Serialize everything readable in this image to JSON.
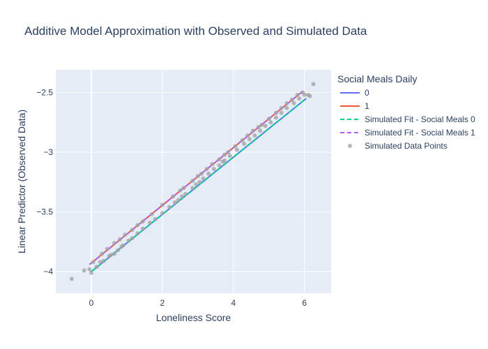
{
  "chart_data": {
    "type": "scatter",
    "title": "Additive Model Approximation with Observed and Simulated Data",
    "xlabel": "Loneliness Score",
    "ylabel": "Linear Predictor (Observed Data)",
    "xlim": [
      -1.0,
      6.75
    ],
    "ylim": [
      -4.18,
      -2.31
    ],
    "x_ticks": [
      0,
      2,
      4,
      6
    ],
    "y_ticks": [
      -4,
      -3.5,
      -3,
      -2.5
    ],
    "x_tick_labels": [
      "0",
      "2",
      "4",
      "6"
    ],
    "y_tick_labels": [
      "−4",
      "−3.5",
      "−3",
      "−2.5"
    ],
    "grid": true,
    "legend": {
      "title": "Social Meals Daily",
      "placement": "right"
    },
    "colors": {
      "line0": "#636efa",
      "line1": "#ef553b",
      "sim0": "#00cc96",
      "sim1": "#ab63fa",
      "points": "#a0a0a0",
      "plot_bg": "#e5ecf6"
    },
    "series": [
      {
        "name": "0",
        "kind": "line",
        "x": [
          0.0,
          6.05
        ],
        "y": [
          -4.0,
          -2.55
        ]
      },
      {
        "name": "1",
        "kind": "line",
        "x": [
          -0.05,
          5.95
        ],
        "y": [
          -3.94,
          -2.49
        ]
      },
      {
        "name": "Simulated Fit - Social Meals 0",
        "kind": "dash",
        "x": [
          0.0,
          6.05
        ],
        "y": [
          -4.0,
          -2.55
        ]
      },
      {
        "name": "Simulated Fit - Social Meals 1",
        "kind": "dash",
        "x": [
          -0.05,
          5.95
        ],
        "y": [
          -3.94,
          -2.49
        ]
      },
      {
        "name": "Simulated Data Points",
        "kind": "points",
        "x": [
          -0.55,
          -0.2,
          -0.05,
          0.0,
          0.15,
          0.25,
          0.35,
          0.5,
          0.55,
          0.65,
          0.75,
          0.85,
          0.9,
          1.05,
          1.15,
          1.3,
          1.45,
          1.65,
          1.8,
          2.0,
          2.2,
          2.35,
          2.45,
          2.55,
          2.65,
          2.85,
          2.95,
          3.05,
          3.15,
          3.3,
          3.45,
          3.6,
          3.7,
          3.75,
          3.9,
          4.1,
          4.3,
          4.45,
          4.6,
          4.75,
          4.9,
          5.05,
          5.2,
          5.35,
          5.5,
          5.7,
          5.85,
          6.0,
          6.1,
          6.15,
          6.25,
          0.05,
          0.3,
          0.45,
          0.65,
          0.8,
          0.95,
          1.15,
          1.3,
          1.45,
          1.7,
          2.0,
          2.3,
          2.5,
          2.6,
          2.85,
          3.0,
          3.1,
          3.25,
          3.4,
          3.6,
          3.75,
          3.85,
          4.05,
          4.25,
          4.4,
          4.55,
          4.7,
          4.8,
          5.0,
          5.2,
          5.35,
          5.5,
          5.65,
          5.8,
          5.95
        ],
        "y": [
          -4.06,
          -3.99,
          -3.98,
          -4.01,
          -3.96,
          -3.92,
          -3.91,
          -3.87,
          -3.86,
          -3.85,
          -3.82,
          -3.79,
          -3.78,
          -3.74,
          -3.72,
          -3.68,
          -3.64,
          -3.59,
          -3.56,
          -3.51,
          -3.46,
          -3.42,
          -3.4,
          -3.37,
          -3.35,
          -3.3,
          -3.27,
          -3.25,
          -3.22,
          -3.18,
          -3.14,
          -3.11,
          -3.08,
          -3.07,
          -3.03,
          -2.98,
          -2.93,
          -2.89,
          -2.86,
          -2.82,
          -2.78,
          -2.75,
          -2.71,
          -2.67,
          -2.63,
          -2.59,
          -2.55,
          -2.52,
          -2.52,
          -2.53,
          -2.43,
          -3.92,
          -3.85,
          -3.81,
          -3.76,
          -3.73,
          -3.69,
          -3.65,
          -3.61,
          -3.58,
          -3.52,
          -3.44,
          -3.37,
          -3.32,
          -3.3,
          -3.24,
          -3.2,
          -3.18,
          -3.14,
          -3.1,
          -3.06,
          -3.02,
          -3.0,
          -2.95,
          -2.9,
          -2.86,
          -2.82,
          -2.79,
          -2.77,
          -2.72,
          -2.67,
          -2.63,
          -2.59,
          -2.56,
          -2.52,
          -2.5
        ]
      }
    ]
  }
}
